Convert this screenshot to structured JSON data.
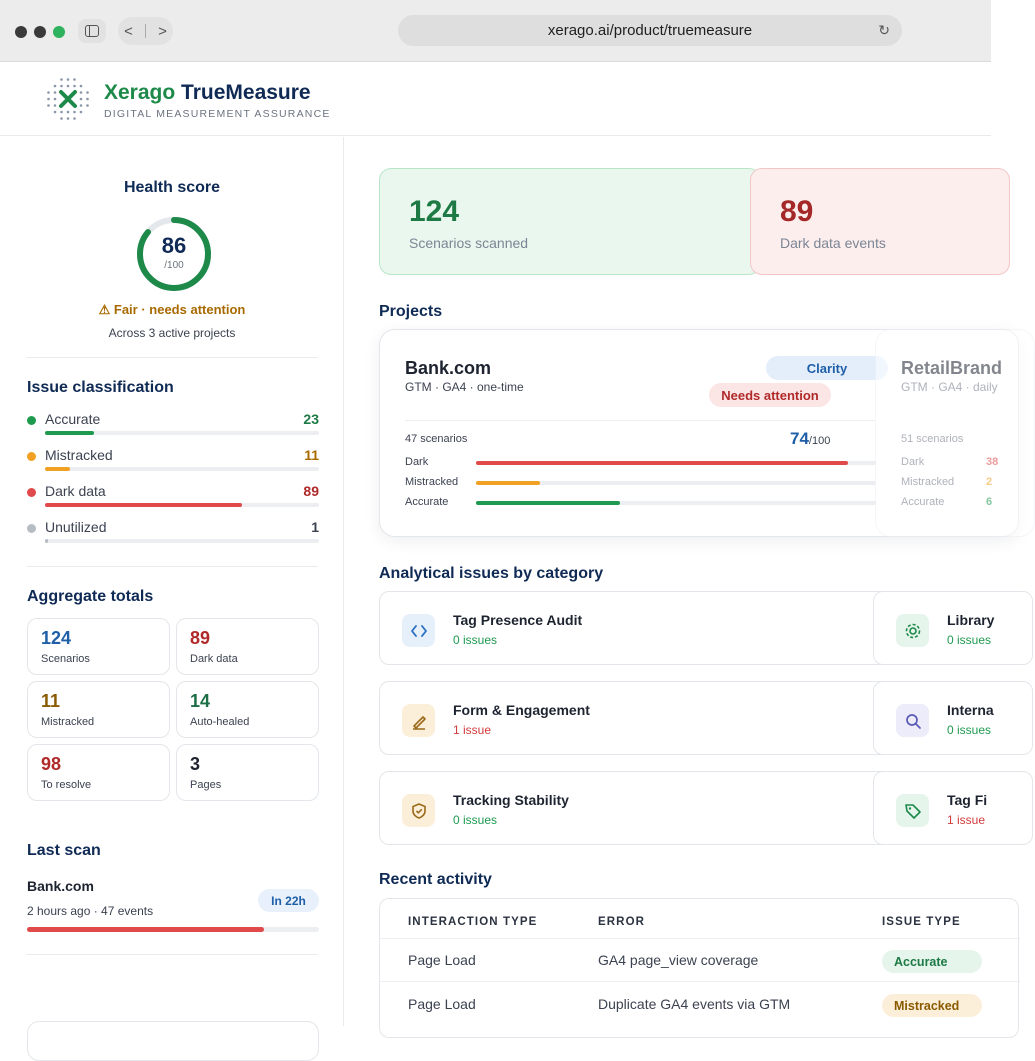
{
  "browser": {
    "url": "xerago.ai/product/truemeasure",
    "nav_back": "<",
    "nav_forward": ">",
    "reload_icon": "reload-icon"
  },
  "brand": {
    "name_first": "Xerago",
    "name_second": "TrueMeasure",
    "tagline": "DIGITAL MEASUREMENT ASSURANCE",
    "colors": {
      "navy": "#0f2a55",
      "green": "#1d8a4a"
    }
  },
  "health": {
    "title": "Health score",
    "score": "86",
    "score_of": "/100",
    "score_fraction": 0.86,
    "status": "⚠ Fair · needs attention",
    "note": "Across 3 active projects"
  },
  "issue_classification": {
    "title": "Issue classification",
    "items": [
      {
        "label": "Accurate",
        "count": "23",
        "color": "#1e9a4f",
        "fraction": 0.18
      },
      {
        "label": "Mistracked",
        "count": "11",
        "color": "#f0a123",
        "fraction": 0.09
      },
      {
        "label": "Dark data",
        "count": "89",
        "color": "#e04a4a",
        "fraction": 0.72
      },
      {
        "label": "Unutilized",
        "count": "1",
        "color": "#b8bcc4",
        "fraction": 0.01
      }
    ]
  },
  "aggregate": {
    "title": "Aggregate totals",
    "cells": [
      {
        "value": "124",
        "label": "Scenarios",
        "color": "#1f5fa8"
      },
      {
        "value": "89",
        "label": "Dark data",
        "color": "#b02a2a"
      },
      {
        "value": "11",
        "label": "Mistracked",
        "color": "#8a5a00"
      },
      {
        "value": "14",
        "label": "Auto-healed",
        "color": "#1d6e46"
      },
      {
        "value": "98",
        "label": "To resolve",
        "color": "#b02a2a"
      },
      {
        "value": "3",
        "label": "Pages",
        "color": "#1d2430"
      }
    ]
  },
  "last_scan": {
    "title": "Last scan",
    "name": "Bank.com",
    "meta": "2 hours ago · 47 events",
    "badge": "In 22h",
    "progress": 0.81
  },
  "stats": [
    {
      "value": "124",
      "label": "Scenarios scanned",
      "color": "#1d7a45"
    },
    {
      "value": "89",
      "label": "Dark data events",
      "color": "#a52828"
    }
  ],
  "projects": {
    "title": "Projects",
    "primary": {
      "name": "Bank.com",
      "meta": "GTM · GA4 · one-time",
      "tag": "Clarity",
      "status": "Needs attention",
      "scenarios": "47 scenarios",
      "score": "74",
      "score_of": "/100",
      "rows": [
        {
          "label": "Dark",
          "fraction": 0.93,
          "color": "#e04a4a"
        },
        {
          "label": "Mistracked",
          "fraction": 0.16,
          "color": "#f0a123"
        },
        {
          "label": "Accurate",
          "fraction": 0.36,
          "color": "#1e9a4f"
        }
      ]
    },
    "secondary": {
      "name": "RetailBrand",
      "meta": "GTM · GA4 · daily",
      "scenarios": "51 scenarios",
      "rows": [
        {
          "label": "Dark",
          "value": "38",
          "color": "#e04a4a"
        },
        {
          "label": "Mistracked",
          "value": "2",
          "color": "#f0a123"
        },
        {
          "label": "Accurate",
          "value": "6",
          "color": "#1e9a4f"
        }
      ]
    }
  },
  "categories": {
    "title": "Analytical issues by category",
    "left": [
      {
        "name": "Tag Presence Audit",
        "count": "0 issues",
        "icon": "code-icon",
        "ok": true
      },
      {
        "name": "Form & Engagement",
        "count": "1 issue",
        "icon": "pen-icon",
        "ok": false
      },
      {
        "name": "Tracking Stability",
        "count": "0 issues",
        "icon": "shield-icon",
        "ok": true
      }
    ],
    "right": [
      {
        "name": "Library",
        "count": "0 issues",
        "icon": "gear-icon",
        "ok": true
      },
      {
        "name": "Interna",
        "count": "0 issues",
        "icon": "search-icon",
        "ok": true
      },
      {
        "name": "Tag Fi",
        "count": "1 issue",
        "icon": "tag-icon",
        "ok": false
      }
    ]
  },
  "activity": {
    "title": "Recent activity",
    "headers": [
      "INTERACTION TYPE",
      "ERROR",
      "ISSUE TYPE"
    ],
    "rows": [
      {
        "type": "Page Load",
        "error": "GA4 page_view coverage",
        "issue": "Accurate"
      },
      {
        "type": "Page Load",
        "error": "Duplicate GA4 events via GTM",
        "issue": "Mistracked"
      }
    ]
  }
}
